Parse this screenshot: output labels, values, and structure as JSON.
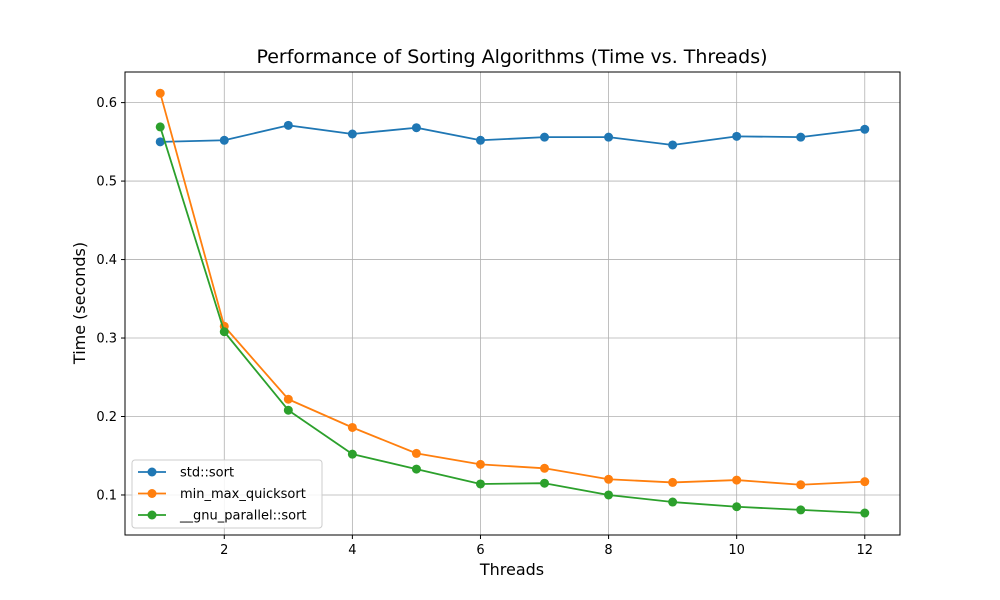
{
  "chart_data": {
    "type": "line",
    "title": "Performance of Sorting Algorithms (Time vs. Threads)",
    "xlabel": "Threads",
    "ylabel": "Time (seconds)",
    "x": [
      1,
      2,
      3,
      4,
      5,
      6,
      7,
      8,
      9,
      10,
      11,
      12
    ],
    "xlim": [
      0.45,
      12.55
    ],
    "ylim": [
      0.049,
      0.639
    ],
    "xticks": [
      2,
      4,
      6,
      8,
      10,
      12
    ],
    "yticks": [
      0.1,
      0.2,
      0.3,
      0.4,
      0.5,
      0.6
    ],
    "grid": true,
    "legend_position": "lower-left",
    "series": [
      {
        "name": "std::sort",
        "color": "#1f77b4",
        "values": [
          0.55,
          0.552,
          0.571,
          0.56,
          0.568,
          0.552,
          0.556,
          0.556,
          0.546,
          0.557,
          0.556,
          0.566
        ]
      },
      {
        "name": "min_max_quicksort",
        "color": "#ff7f0e",
        "values": [
          0.612,
          0.315,
          0.222,
          0.186,
          0.153,
          0.139,
          0.134,
          0.12,
          0.116,
          0.119,
          0.113,
          0.117
        ]
      },
      {
        "name": "__gnu_parallel::sort",
        "color": "#2ca02c",
        "values": [
          0.569,
          0.308,
          0.208,
          0.152,
          0.133,
          0.114,
          0.115,
          0.1,
          0.091,
          0.085,
          0.081,
          0.077
        ]
      }
    ]
  }
}
